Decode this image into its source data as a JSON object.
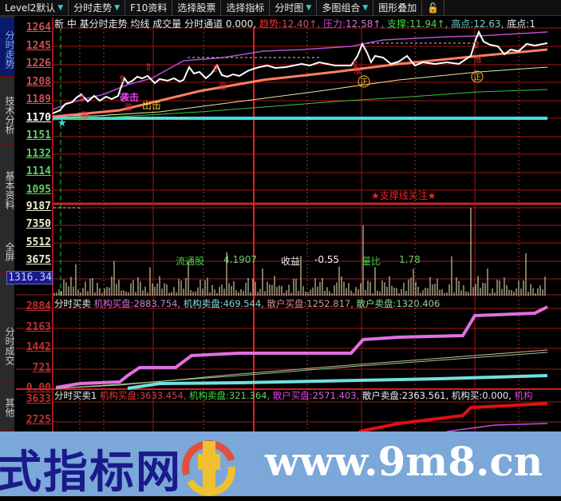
{
  "toolbar": {
    "items": [
      {
        "label": "Level2默认",
        "dropdown": true
      },
      {
        "label": "分时走势",
        "dropdown": true
      },
      {
        "label": "F10资料",
        "dropdown": false
      },
      {
        "label": "选择股票",
        "dropdown": false
      },
      {
        "label": "选择指标",
        "dropdown": false
      },
      {
        "label": "分时图",
        "dropdown": true
      },
      {
        "label": "多图组合",
        "dropdown": true
      },
      {
        "label": "图形叠加",
        "dropdown": false
      }
    ],
    "lock_icon": "lock-icon"
  },
  "sidebar": {
    "tabs": [
      {
        "label": "分时走势",
        "active": true
      },
      {
        "label": "技术分析"
      },
      {
        "label": "基本资料"
      },
      {
        "label": "全屏"
      },
      {
        "label": "分时成交"
      },
      {
        "label": "其他"
      }
    ]
  },
  "price_panel": {
    "info": {
      "prefix": "新 中 基分时走势 均线 成交量 分时通道 0.000,",
      "trend_label": "趋势:",
      "trend_value": "12.40↑,",
      "pressure_label": "压力:",
      "pressure_value": "12.58↑,",
      "support_label": "支撑:",
      "support_value": "11.94↑,",
      "high_label": "高点:",
      "high_value": "12.63,",
      "low_label": "底点:",
      "low_value": "1"
    },
    "axis": [
      "1264",
      "1245",
      "1226",
      "1208",
      "1189",
      "1170",
      "1151",
      "1132",
      "1114",
      "1095"
    ],
    "markers": {
      "attack": "袭击",
      "exit": "出击",
      "rise": "涨",
      "positive": "正"
    },
    "annotation": "★支撑线关注★"
  },
  "volume_panel": {
    "axis": [
      "9187",
      "7350",
      "5512",
      "3675"
    ],
    "current": "1316.34",
    "float_label": "流通股",
    "float_value": "4.1907",
    "eps_label": "收益",
    "eps_value": "-0.55",
    "ratio_label": "量比",
    "ratio_value": "1.78"
  },
  "trade_panel": {
    "title": "分时买卖",
    "inst_buy_label": "机构买盘:",
    "inst_buy": "2883.754,",
    "inst_sell_label": "机构卖盘:",
    "inst_sell": "469.544,",
    "retail_buy_label": "散户买盘:",
    "retail_buy": "1252.817,",
    "retail_sell_label": "散户卖盘:",
    "retail_sell": "1320.406",
    "axis": [
      "2884",
      "2163",
      "1442",
      "721",
      "0.00"
    ]
  },
  "trade_panel2": {
    "title": "分时买卖1",
    "inst_buy_label": "机构买盘:",
    "inst_buy": "3633.454,",
    "inst_sell_label": "机构卖盘:",
    "inst_sell": "321.364,",
    "retail_buy_label": "散户买盘:",
    "retail_buy": "2571.403,",
    "retail_sell_label": "散户卖盘:",
    "retail_sell": "2363.561,",
    "inst_label": "机构买:",
    "inst_value": "0.000,",
    "tail": "机构",
    "axis": [
      "3633",
      "2725"
    ]
  },
  "watermark": {
    "text_cn": "式指标网",
    "url": "www.9m8.cn",
    "logo_text": "www.9m8.cn"
  },
  "colors": {
    "grid": "#a01818",
    "price": "#ffffff",
    "support": "#40e0e0",
    "inst_buy": "#e070e0",
    "inst_sell": "#70e0e0",
    "up_axis": "#d05050",
    "down_axis": "#60d060"
  }
}
